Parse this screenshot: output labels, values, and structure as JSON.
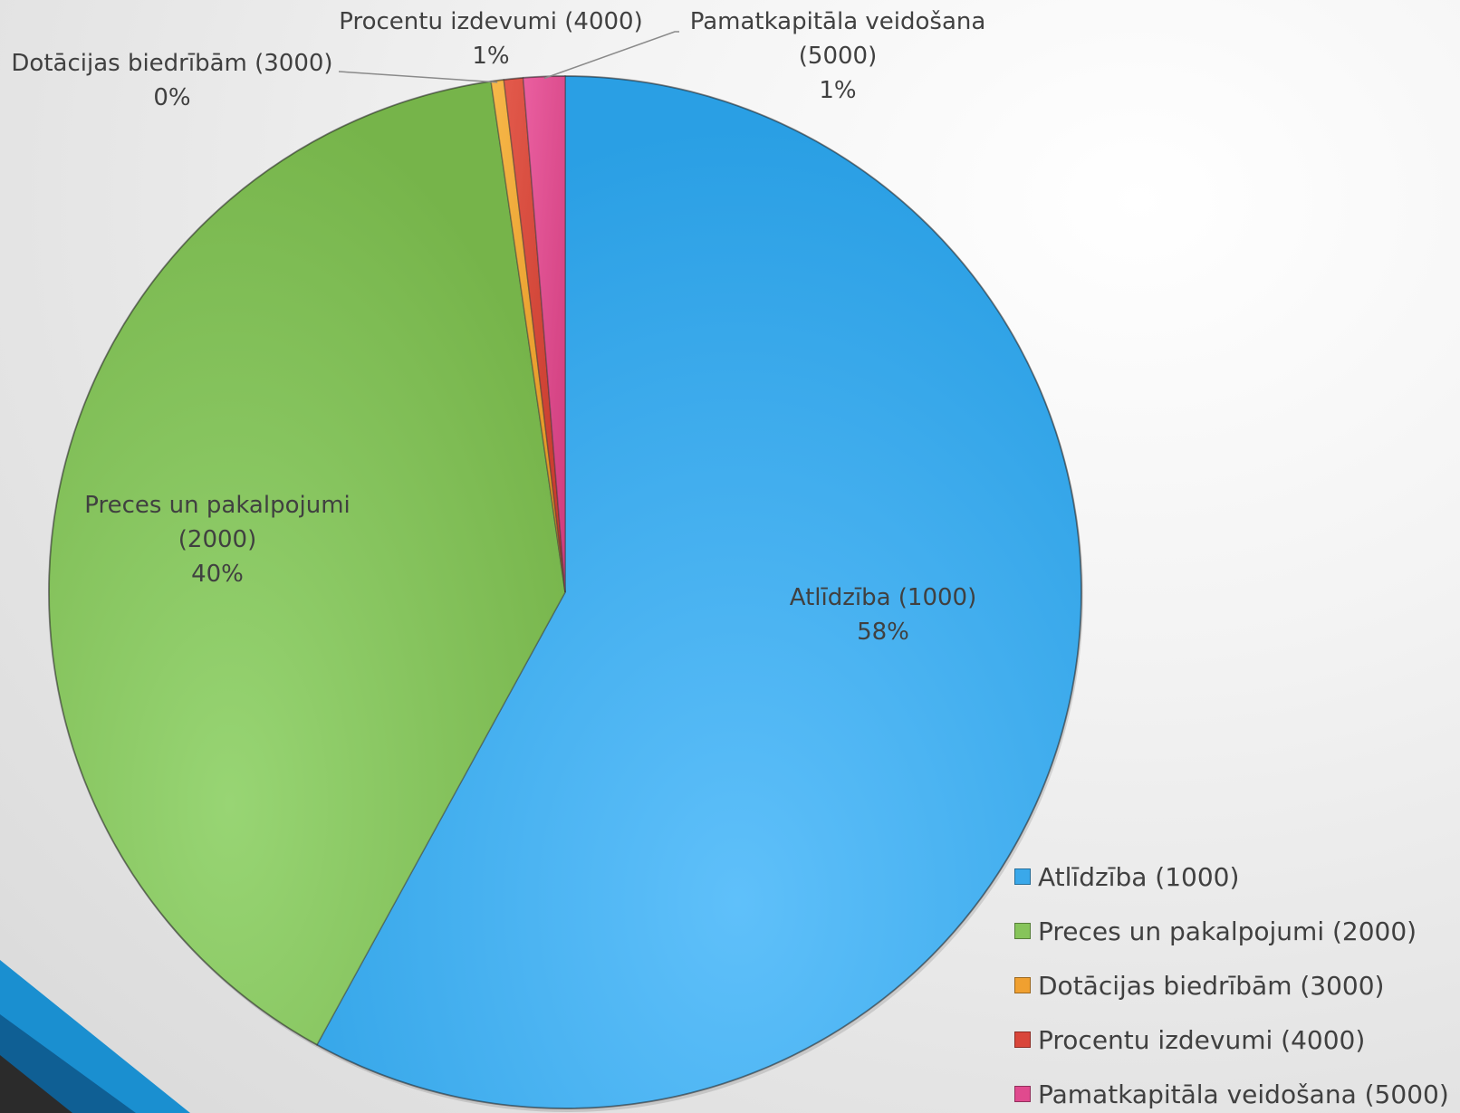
{
  "chart_data": {
    "type": "pie",
    "title": "",
    "categories": [
      "Atlīdzība (1000)",
      "Preces un pakalpojumi (2000)",
      "Dotācijas biedrībām (3000)",
      "Procentu izdevumi (4000)",
      "Pamatkapitāla veidošana (5000)"
    ],
    "values": [
      58.1,
      39.8,
      0.4,
      0.6,
      1.3
    ],
    "value_labels": [
      "58%",
      "40%",
      "0%",
      "1%",
      "1%"
    ],
    "colors": [
      "#3aa8ea",
      "#86c45a",
      "#f0a030",
      "#d9463a",
      "#e04a8e"
    ],
    "data_labels": [
      {
        "lines": [
          "Atlīdzība (1000)",
          "58%"
        ]
      },
      {
        "lines": [
          "Preces un pakalpojumi",
          "(2000)",
          "40%"
        ]
      },
      {
        "lines": [
          "Dotācijas biedrībām (3000)",
          "0%"
        ]
      },
      {
        "lines": [
          "Procentu izdevumi (4000)",
          "1%"
        ]
      },
      {
        "lines": [
          "Pamatkapitāla veidošana",
          "(5000)",
          "1%"
        ]
      }
    ],
    "legend": {
      "placement": "bottom-right",
      "items": [
        "Atlīdzība (1000)",
        "Preces un pakalpojumi (2000)",
        "Dotācijas biedrībām (3000)",
        "Procentu izdevumi (4000)",
        "Pamatkapitāla veidošana (5000)"
      ]
    }
  }
}
